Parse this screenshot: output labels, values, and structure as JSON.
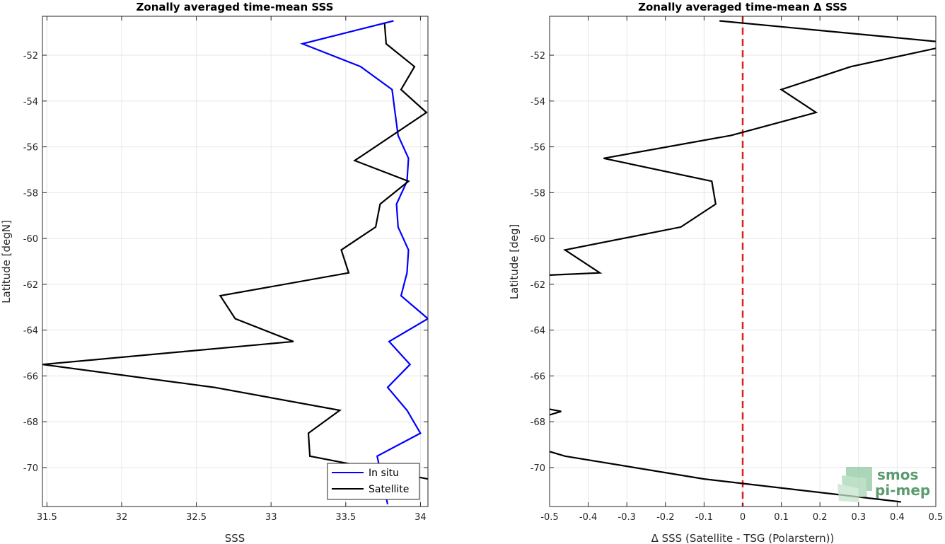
{
  "chart_data": [
    {
      "type": "line",
      "title": "Zonally averaged time-mean SSS",
      "xlabel": "SSS",
      "ylabel": "Latitude [degN]",
      "xlim": [
        31.47,
        34.05
      ],
      "ylim": [
        -71.7,
        -50.3
      ],
      "xticks": [
        31.5,
        32,
        32.5,
        33,
        33.5,
        34
      ],
      "xtick_labels": [
        "31.5",
        "32",
        "32.5",
        "33",
        "33.5",
        "34"
      ],
      "yticks": [
        -52,
        -54,
        -56,
        -58,
        -60,
        -62,
        -64,
        -66,
        -68,
        -70
      ],
      "ytick_labels": [
        "-52",
        "-54",
        "-56",
        "-58",
        "-60",
        "-62",
        "-64",
        "-66",
        "-68",
        "-70"
      ],
      "grid": true,
      "legend": "bottom-right",
      "series": [
        {
          "name": "In situ",
          "color": "#0000ff",
          "x": [
            33.82,
            33.21,
            33.6,
            33.81,
            33.83,
            33.85,
            33.92,
            33.91,
            33.84,
            33.85,
            33.92,
            33.91,
            33.87,
            34.05,
            33.79,
            33.93,
            33.78,
            33.91,
            34.0,
            33.71,
            33.78
          ],
          "y": [
            -50.5,
            -51.5,
            -52.5,
            -53.5,
            -54.5,
            -55.5,
            -56.5,
            -57.5,
            -58.5,
            -59.5,
            -60.5,
            -61.5,
            -62.5,
            -63.5,
            -64.5,
            -65.5,
            -66.5,
            -67.5,
            -68.5,
            -69.5,
            -71.6
          ]
        },
        {
          "name": "Satellite",
          "color": "#000000",
          "x": [
            33.76,
            33.77,
            33.96,
            33.87,
            34.04,
            33.56,
            33.92,
            33.73,
            33.7,
            33.47,
            33.52,
            32.66,
            32.76,
            33.15,
            31.47,
            32.62,
            33.46,
            33.25,
            33.26,
            34.05
          ],
          "y": [
            -50.6,
            -51.5,
            -52.5,
            -53.5,
            -54.5,
            -56.6,
            -57.5,
            -58.5,
            -59.5,
            -60.5,
            -61.5,
            -62.5,
            -63.5,
            -64.5,
            -65.5,
            -66.5,
            -67.5,
            -68.5,
            -69.5,
            -70.5
          ]
        }
      ]
    },
    {
      "type": "line",
      "title": "Zonally averaged time-mean Δ SSS",
      "xlabel": "Δ SSS (Satellite - TSG (Polarstern))",
      "ylabel": "Latitude [deg]",
      "xlim": [
        -0.5,
        0.5
      ],
      "ylim": [
        -71.7,
        -50.3
      ],
      "xticks": [
        -0.5,
        -0.4,
        -0.3,
        -0.2,
        -0.1,
        0,
        0.1,
        0.2,
        0.3,
        0.4,
        0.5
      ],
      "xtick_labels": [
        "-0.5",
        "-0.4",
        "-0.3",
        "-0.2",
        "-0.1",
        "0",
        "0.1",
        "0.2",
        "0.3",
        "0.4",
        "0.5"
      ],
      "yticks": [
        -52,
        -54,
        -56,
        -58,
        -60,
        -62,
        -64,
        -66,
        -68,
        -70
      ],
      "ytick_labels": [
        "-52",
        "-54",
        "-56",
        "-58",
        "-60",
        "-62",
        "-64",
        "-66",
        "-68",
        "-70"
      ],
      "grid": true,
      "reference_line": {
        "x": 0,
        "color": "#e02020",
        "style": "dashed"
      },
      "series": [
        {
          "color": "#000000",
          "segments": [
            {
              "x": [
                -0.06,
                0.5,
                0.55,
                0.5,
                0.28,
                0.1,
                0.19,
                -0.03,
                -0.36,
                -0.08,
                -0.07,
                -0.16,
                -0.46,
                -0.37,
                -0.5
              ],
              "y": [
                -50.5,
                -51.4,
                -51.5,
                -51.7,
                -52.5,
                -53.5,
                -54.5,
                -55.5,
                -56.5,
                -57.5,
                -58.5,
                -59.5,
                -60.5,
                -61.5,
                -61.6
              ]
            },
            {
              "x": [
                -0.5,
                -0.47,
                -0.5
              ],
              "y": [
                -67.45,
                -67.55,
                -67.7
              ]
            },
            {
              "x": [
                -0.5,
                -0.46,
                -0.1,
                0.41
              ],
              "y": [
                -69.3,
                -69.5,
                -70.5,
                -71.5
              ]
            }
          ]
        }
      ]
    }
  ],
  "logo": {
    "line1": "smos",
    "line2": "pi-mep",
    "color": "#5b9b6f"
  }
}
